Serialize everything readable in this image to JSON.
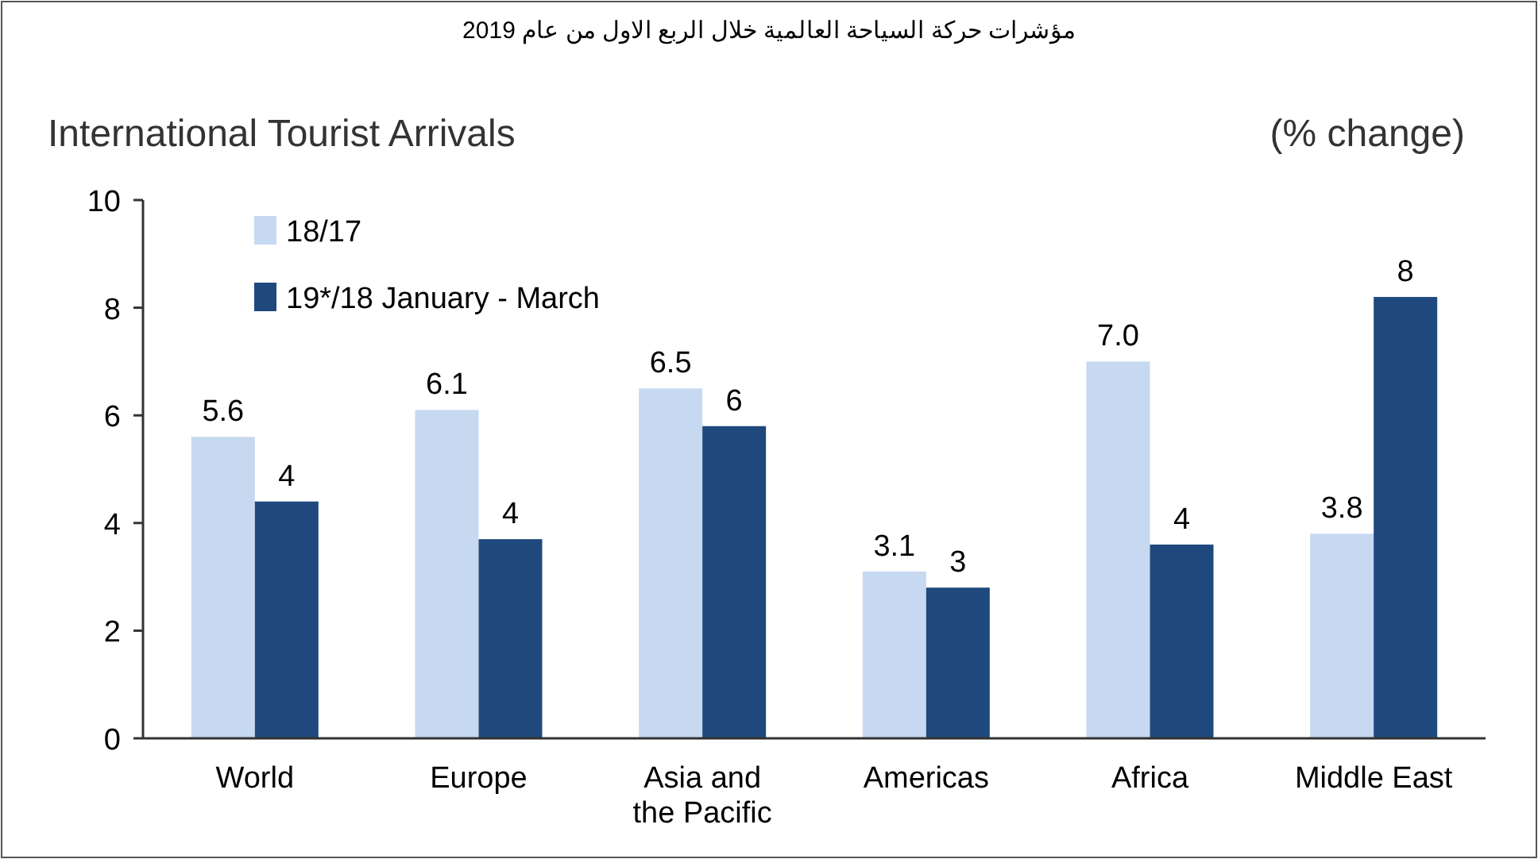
{
  "chart_data": {
    "type": "bar",
    "title": "مؤشرات حركة السياحة العالمية خلال الربع الاول من عام 2019",
    "subtitle": "International Tourist Arrivals",
    "ylabel": "(% change)",
    "categories": [
      "World",
      "Europe",
      "Asia and the Pacific",
      "Americas",
      "Africa",
      "Middle East"
    ],
    "series": [
      {
        "name": "18/17",
        "color": "#c6d9f1",
        "values": [
          5.6,
          6.1,
          6.5,
          3.1,
          7.0,
          3.8
        ],
        "value_labels": [
          "5.6",
          "6.1",
          "6.5",
          "3.1",
          "7.0",
          "3.8"
        ]
      },
      {
        "name": "19*/18 January - March",
        "color": "#1f497d",
        "values": [
          4.4,
          3.7,
          5.8,
          2.8,
          3.6,
          8.2
        ],
        "value_labels": [
          "4",
          "4",
          "6",
          "3",
          "4",
          "8"
        ]
      }
    ],
    "ylim": [
      0,
      10
    ],
    "yticks": [
      0,
      2,
      4,
      6,
      8,
      10
    ],
    "legend": "top left",
    "grid": false
  }
}
